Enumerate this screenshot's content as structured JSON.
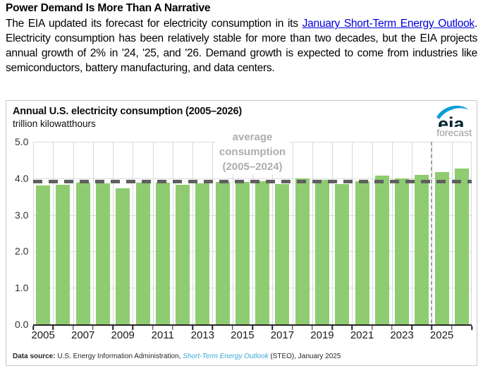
{
  "article": {
    "title": "Power Demand Is More Than A Narrative",
    "intro": "The EIA updated its forecast for electricity consumption in its ",
    "link": "January Short-Term Energy Outlook",
    "rest": ". Electricity consumption has been relatively stable for more than two decades, but the EIA projects annual growth of 2% in '24, '25, and '26. Demand growth is expected to come from industries like semiconductors, battery manufac­turing, and data centers."
  },
  "chart": {
    "title": "Annual U.S. electricity consumption (2005–2026)",
    "subtitle": "trillion kilowatthours",
    "logo_text": "eia",
    "forecast_label": "forecast",
    "average_label": [
      "average",
      "consumption",
      "(2005–2024)"
    ],
    "source": {
      "label": "Data source: ",
      "body": "U.S. Energy Information Administration, ",
      "link": "Short-Term Energy Outlook",
      "rest": " (STEO), January 2025"
    }
  },
  "chart_data": {
    "type": "bar",
    "title": "Annual U.S. electricity consumption (2005–2026)",
    "ylabel": "trillion kilowatthours",
    "xlabel": "",
    "categories": [
      "2005",
      "2006",
      "2007",
      "2008",
      "2009",
      "2010",
      "2011",
      "2012",
      "2013",
      "2014",
      "2015",
      "2016",
      "2017",
      "2018",
      "2019",
      "2020",
      "2021",
      "2022",
      "2023",
      "2024",
      "2025",
      "2026"
    ],
    "values": [
      3.81,
      3.82,
      3.89,
      3.87,
      3.72,
      3.89,
      3.88,
      3.83,
      3.86,
      3.9,
      3.9,
      3.92,
      3.85,
      4.0,
      3.95,
      3.84,
      3.92,
      4.07,
      4.0,
      4.09,
      4.17,
      4.26
    ],
    "average_line": {
      "label": "average consumption (2005–2024)",
      "value": 3.9
    },
    "forecast_start_category": "2025",
    "ylim": [
      0,
      5
    ],
    "yticks": [
      0,
      1,
      2,
      3,
      4,
      5
    ],
    "xtick_labels": [
      "2005",
      "2007",
      "2009",
      "2011",
      "2013",
      "2015",
      "2017",
      "2019",
      "2021",
      "2023",
      "2025"
    ],
    "grid": true,
    "legend": false,
    "colors": {
      "bar": "#8fcc71",
      "average_line": "#5f5f5f",
      "grid": "#d9d9d9",
      "axis": "#262626",
      "forecast_line": "#a0a0a0",
      "muted_label": "#adadad",
      "logo_navy": "#00232e",
      "logo_blue": "#0b9dd8",
      "source_link_blue": "#3ba7dc"
    }
  }
}
